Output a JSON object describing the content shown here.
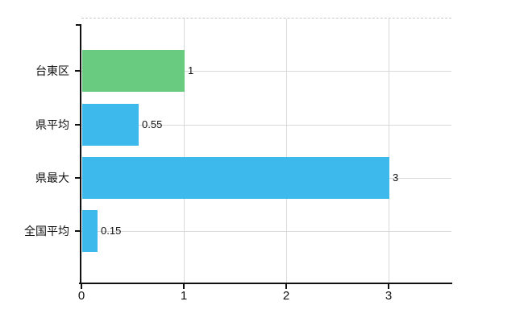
{
  "chart_data": {
    "type": "bar",
    "orientation": "horizontal",
    "title": "",
    "xlabel": "",
    "ylabel": "",
    "categories": [
      "台東区",
      "県平均",
      "県最大",
      "全国平均"
    ],
    "values": [
      1,
      0.55,
      3,
      0.15
    ],
    "value_labels": [
      "1",
      "0.55",
      "3",
      "0.15"
    ],
    "bar_colors": [
      "#69cb7f",
      "#3eb9ec",
      "#3eb9ec",
      "#3eb9ec"
    ],
    "xlim": [
      0,
      3.6
    ],
    "xticks": [
      0,
      1,
      2,
      3
    ],
    "xtick_labels": [
      "0",
      "1",
      "2",
      "3"
    ],
    "grid": "on",
    "legend": "none"
  },
  "colors": {
    "bar_green": "#69cb7f",
    "bar_blue": "#3eb9ec",
    "axis": "#111111",
    "gridline": "#d9d9d9",
    "top_border": "#c8c8c8",
    "label_text": "#111111",
    "background": "#ffffff"
  }
}
